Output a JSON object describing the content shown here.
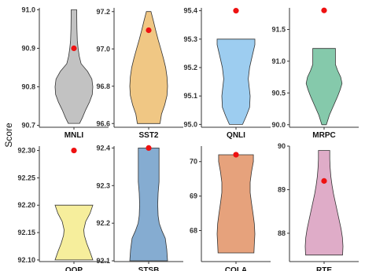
{
  "ylabel": "Score",
  "point_color": "#ee1111",
  "chart_data": [
    {
      "type": "violin",
      "title": "MNLI",
      "ylim": [
        90.695,
        91.005
      ],
      "ticks": [
        "90.7",
        "90.8",
        "90.9",
        "91.0"
      ],
      "color": "#c2c2c2",
      "profile": [
        [
          90.705,
          0.3
        ],
        [
          90.72,
          0.45
        ],
        [
          90.74,
          0.62
        ],
        [
          90.76,
          0.82
        ],
        [
          90.78,
          0.97
        ],
        [
          90.8,
          1.0
        ],
        [
          90.82,
          0.95
        ],
        [
          90.84,
          0.72
        ],
        [
          90.86,
          0.38
        ],
        [
          90.88,
          0.28
        ],
        [
          90.9,
          0.22
        ],
        [
          90.92,
          0.18
        ],
        [
          90.95,
          0.16
        ],
        [
          90.98,
          0.15
        ],
        [
          91.0,
          0.15
        ]
      ],
      "point": 90.9
    },
    {
      "type": "violin",
      "title": "SST2",
      "ylim": [
        96.58,
        97.22
      ],
      "ticks": [
        "96.6",
        "96.8",
        "97.0",
        "97.2"
      ],
      "color": "#f0c784",
      "profile": [
        [
          96.6,
          0.6
        ],
        [
          96.65,
          0.68
        ],
        [
          96.7,
          0.85
        ],
        [
          96.75,
          0.97
        ],
        [
          96.8,
          1.0
        ],
        [
          96.85,
          0.97
        ],
        [
          96.9,
          0.9
        ],
        [
          96.95,
          0.78
        ],
        [
          97.0,
          0.64
        ],
        [
          97.05,
          0.5
        ],
        [
          97.1,
          0.37
        ],
        [
          97.15,
          0.25
        ],
        [
          97.2,
          0.12
        ]
      ],
      "point": 97.1
    },
    {
      "type": "violin",
      "title": "QNLI",
      "ylim": [
        94.99,
        95.41
      ],
      "ticks": [
        "95.0",
        "95.1",
        "95.2",
        "95.3",
        "95.4"
      ],
      "color": "#9dcdf0",
      "profile": [
        [
          95.0,
          0.35
        ],
        [
          95.03,
          0.55
        ],
        [
          95.06,
          0.72
        ],
        [
          95.1,
          0.75
        ],
        [
          95.13,
          0.7
        ],
        [
          95.16,
          0.65
        ],
        [
          95.2,
          0.72
        ],
        [
          95.24,
          0.86
        ],
        [
          95.28,
          1.0
        ],
        [
          95.3,
          1.0
        ]
      ],
      "point": 95.4
    },
    {
      "type": "violin",
      "title": "MRPC",
      "ylim": [
        89.96,
        91.84
      ],
      "ticks": [
        "90.0",
        "90.5",
        "91.0",
        "91.5"
      ],
      "color": "#85c9ab",
      "profile": [
        [
          90.0,
          0.12
        ],
        [
          90.15,
          0.28
        ],
        [
          90.3,
          0.5
        ],
        [
          90.45,
          0.72
        ],
        [
          90.55,
          0.85
        ],
        [
          90.65,
          0.95
        ],
        [
          90.75,
          0.88
        ],
        [
          90.85,
          0.72
        ],
        [
          90.95,
          0.6
        ],
        [
          91.05,
          0.6
        ],
        [
          91.2,
          0.6
        ]
      ],
      "point": 91.8
    },
    {
      "type": "violin",
      "title": "QQP",
      "ylim": [
        92.097,
        92.308
      ],
      "ticks": [
        "92.10",
        "92.15",
        "92.20",
        "92.25",
        "92.30"
      ],
      "color": "#f6ee9c",
      "profile": [
        [
          92.1,
          1.0
        ],
        [
          92.115,
          0.85
        ],
        [
          92.13,
          0.68
        ],
        [
          92.145,
          0.55
        ],
        [
          92.155,
          0.52
        ],
        [
          92.17,
          0.62
        ],
        [
          92.185,
          0.85
        ],
        [
          92.2,
          1.0
        ]
      ],
      "point": 92.3
    },
    {
      "type": "violin",
      "title": "STSB",
      "ylim": [
        92.098,
        92.405
      ],
      "ticks": [
        "92.1",
        "92.2",
        "92.3",
        "92.4"
      ],
      "color": "#85acd1",
      "profile": [
        [
          92.1,
          1.0
        ],
        [
          92.13,
          0.96
        ],
        [
          92.16,
          0.88
        ],
        [
          92.18,
          0.7
        ],
        [
          92.2,
          0.56
        ],
        [
          92.22,
          0.5
        ],
        [
          92.25,
          0.48
        ],
        [
          92.28,
          0.5
        ],
        [
          92.31,
          0.55
        ],
        [
          92.34,
          0.55
        ],
        [
          92.37,
          0.55
        ],
        [
          92.4,
          0.55
        ]
      ],
      "point": 92.4
    },
    {
      "type": "violin",
      "title": "COLA",
      "ylim": [
        67.1,
        70.45
      ],
      "ticks": [
        "68",
        "69",
        "70"
      ],
      "color": "#e6a27c",
      "profile": [
        [
          67.35,
          0.95
        ],
        [
          67.6,
          0.97
        ],
        [
          67.9,
          1.0
        ],
        [
          68.2,
          0.97
        ],
        [
          68.5,
          0.9
        ],
        [
          68.8,
          0.82
        ],
        [
          69.1,
          0.75
        ],
        [
          69.4,
          0.75
        ],
        [
          69.7,
          0.82
        ],
        [
          70.0,
          0.92
        ],
        [
          70.2,
          0.92
        ]
      ],
      "point": 70.2
    },
    {
      "type": "violin",
      "title": "RTE",
      "ylim": [
        87.35,
        90.0
      ],
      "ticks": [
        "88",
        "89",
        "90"
      ],
      "color": "#dfacc8",
      "profile": [
        [
          87.5,
          0.98
        ],
        [
          87.7,
          1.0
        ],
        [
          87.9,
          0.97
        ],
        [
          88.1,
          0.9
        ],
        [
          88.3,
          0.8
        ],
        [
          88.5,
          0.7
        ],
        [
          88.7,
          0.6
        ],
        [
          88.9,
          0.5
        ],
        [
          89.1,
          0.42
        ],
        [
          89.3,
          0.36
        ],
        [
          89.5,
          0.32
        ],
        [
          89.7,
          0.3
        ],
        [
          89.9,
          0.3
        ]
      ],
      "point": 89.2
    }
  ]
}
